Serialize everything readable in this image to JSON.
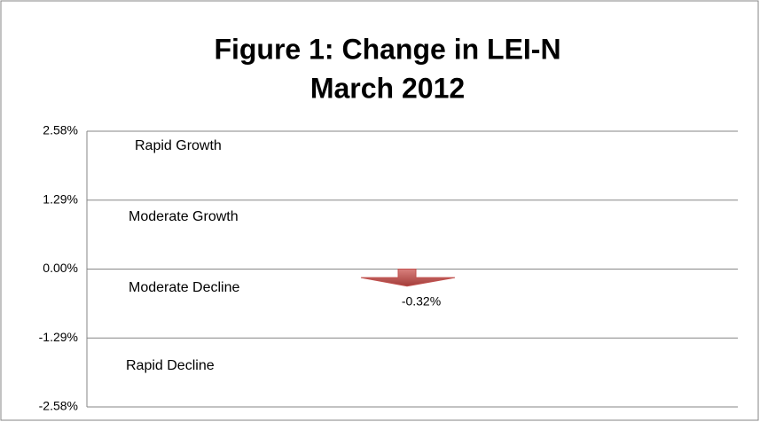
{
  "chart_data": {
    "type": "arrow",
    "title": "Figure 1:  Change in LEI-N",
    "subtitle": "March 2012",
    "categories": [
      null
    ],
    "values": [
      -0.32
    ],
    "value_labels": [
      "-0.32%"
    ],
    "color": "#c0504d",
    "ylim": [
      -2.58,
      2.58
    ],
    "yticks": [
      {
        "value": 2.58,
        "label": "2.58%"
      },
      {
        "value": 1.29,
        "label": "1.29%"
      },
      {
        "value": 0,
        "label": "0.00%"
      },
      {
        "value": -1.29,
        "label": "-1.29%"
      },
      {
        "value": -2.58,
        "label": "-2.58%"
      }
    ],
    "grid": true,
    "annotations": [
      "Rapid Growth",
      "Moderate Growth",
      "Moderate Decline",
      "Rapid Decline"
    ]
  }
}
